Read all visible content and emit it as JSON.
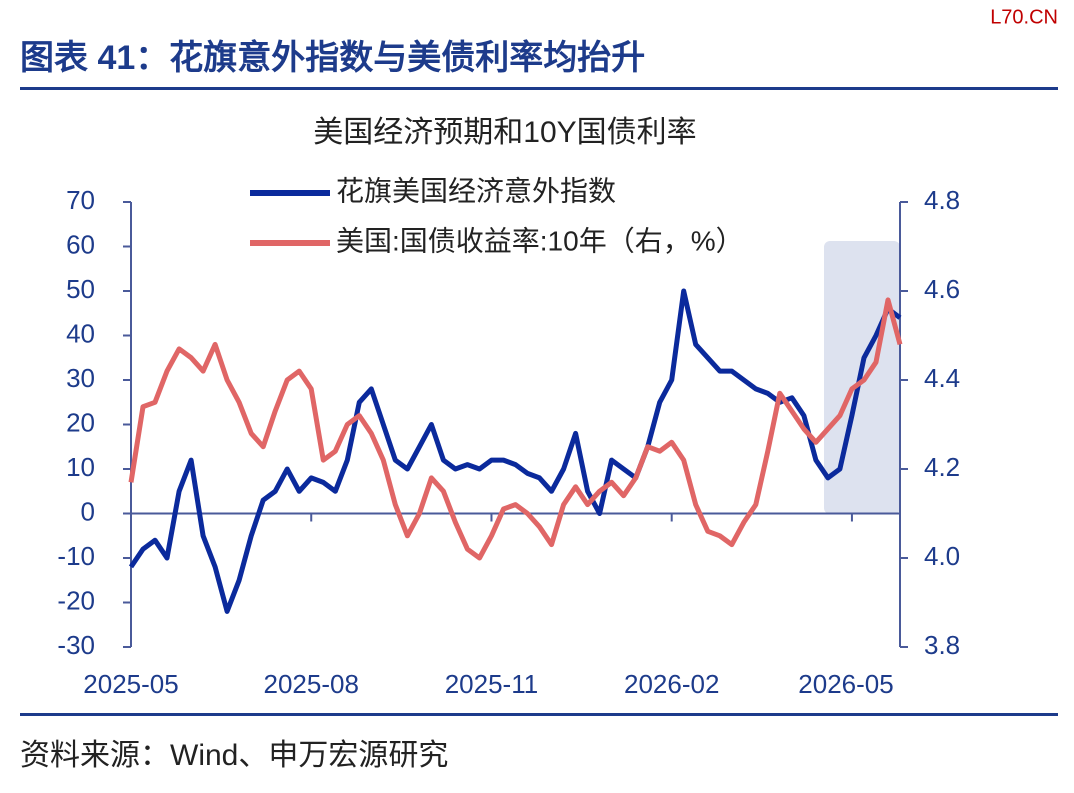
{
  "header": {
    "title": "图表 41：花旗意外指数与美债利率均抬升",
    "watermark": "L70.CN"
  },
  "source": "资料来源：Wind、申万宏源研究",
  "chart_data": {
    "type": "line",
    "title": "美国经济预期和10Y国债利率",
    "categories": [
      "2025-05",
      null,
      null,
      null,
      null,
      null,
      null,
      null,
      null,
      null,
      null,
      null,
      null,
      null,
      null,
      "2025-08",
      null,
      null,
      null,
      null,
      null,
      null,
      null,
      null,
      null,
      null,
      null,
      null,
      null,
      null,
      "2025-11",
      null,
      null,
      null,
      null,
      null,
      null,
      null,
      null,
      null,
      null,
      null,
      null,
      null,
      null,
      "2026-02",
      null,
      null,
      null,
      null,
      null,
      null,
      null,
      null,
      null,
      null,
      null,
      null,
      null,
      null,
      "2026-05",
      null,
      null,
      null,
      null
    ],
    "series": [
      {
        "name": "花旗美国经济意外指数",
        "color": "#0b2a9c",
        "axis": "y",
        "values": [
          -12,
          -8,
          -6,
          -10,
          5,
          12,
          -5,
          -12,
          -22,
          -15,
          -5,
          3,
          5,
          10,
          5,
          8,
          7,
          5,
          12,
          25,
          28,
          20,
          12,
          10,
          15,
          20,
          12,
          10,
          11,
          10,
          12,
          12,
          11,
          9,
          8,
          5,
          10,
          18,
          5,
          0,
          12,
          10,
          8,
          15,
          25,
          30,
          50,
          38,
          35,
          32,
          32,
          30,
          28,
          27,
          25,
          26,
          22,
          12,
          8,
          10,
          22,
          35,
          40,
          46,
          44
        ]
      },
      {
        "name": "美国:国债收益率:10年（右，%）",
        "color": "#e06666",
        "axis": "y2",
        "values": [
          4.17,
          4.34,
          4.35,
          4.42,
          4.47,
          4.45,
          4.42,
          4.48,
          4.4,
          4.35,
          4.28,
          4.25,
          4.33,
          4.4,
          4.42,
          4.38,
          4.22,
          4.24,
          4.3,
          4.32,
          4.28,
          4.22,
          4.12,
          4.05,
          4.1,
          4.18,
          4.15,
          4.08,
          4.02,
          4.0,
          4.05,
          4.11,
          4.12,
          4.1,
          4.07,
          4.03,
          4.12,
          4.16,
          4.12,
          4.15,
          4.17,
          4.14,
          4.18,
          4.25,
          4.24,
          4.26,
          4.22,
          4.12,
          4.06,
          4.05,
          4.03,
          4.08,
          4.12,
          4.24,
          4.37,
          4.33,
          4.29,
          4.26,
          4.29,
          4.32,
          4.38,
          4.4,
          4.44,
          4.58,
          4.48
        ]
      }
    ],
    "ylim": [
      -30,
      70
    ],
    "yticks": [
      -30,
      -20,
      -10,
      0,
      10,
      20,
      30,
      40,
      50,
      60,
      70
    ],
    "y2lim": [
      3.8,
      4.8
    ],
    "y2ticks": [
      3.8,
      {
        "value": 4,
        "label": "4.0"
      },
      4.2,
      4.4,
      4.6,
      4.8
    ]
  }
}
